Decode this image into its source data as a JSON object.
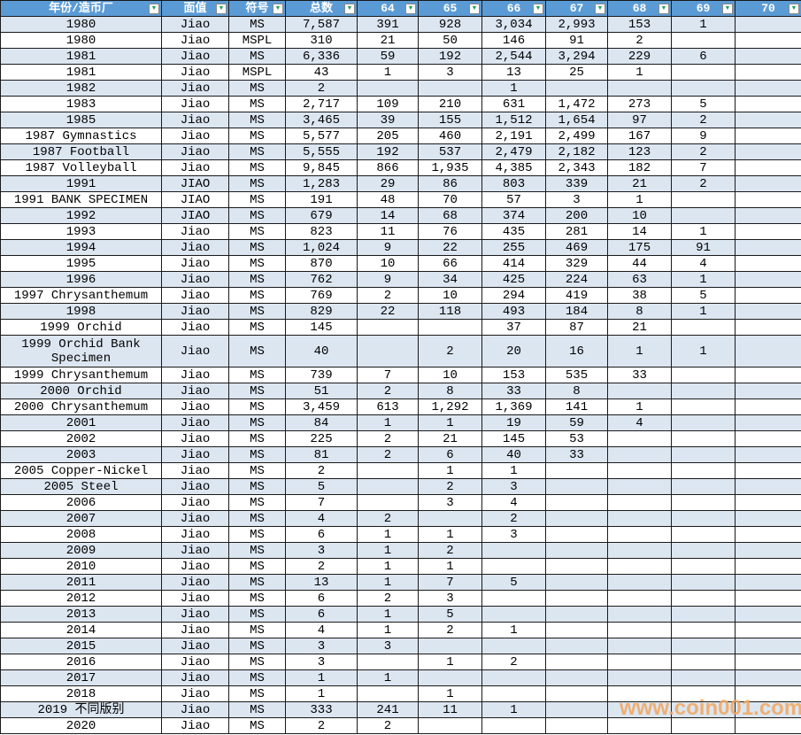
{
  "table": {
    "columns": [
      "年份/造币厂",
      "面值",
      "符号",
      "总数",
      "64",
      "65",
      "66",
      "67",
      "68",
      "69",
      "70"
    ],
    "filter_icon": "▼",
    "tall_row_index": 20,
    "rows": [
      [
        "1980",
        "Jiao",
        "MS",
        "7,587",
        "391",
        "928",
        "3,034",
        "2,993",
        "153",
        "1",
        ""
      ],
      [
        "1980",
        "Jiao",
        "MSPL",
        "310",
        "21",
        "50",
        "146",
        "91",
        "2",
        "",
        ""
      ],
      [
        "1981",
        "Jiao",
        "MS",
        "6,336",
        "59",
        "192",
        "2,544",
        "3,294",
        "229",
        "6",
        ""
      ],
      [
        "1981",
        "Jiao",
        "MSPL",
        "43",
        "1",
        "3",
        "13",
        "25",
        "1",
        "",
        ""
      ],
      [
        "1982",
        "Jiao",
        "MS",
        "2",
        "",
        "",
        "1",
        "",
        "",
        "",
        ""
      ],
      [
        "1983",
        "Jiao",
        "MS",
        "2,717",
        "109",
        "210",
        "631",
        "1,472",
        "273",
        "5",
        ""
      ],
      [
        "1985",
        "Jiao",
        "MS",
        "3,465",
        "39",
        "155",
        "1,512",
        "1,654",
        "97",
        "2",
        ""
      ],
      [
        "1987 Gymnastics",
        "Jiao",
        "MS",
        "5,577",
        "205",
        "460",
        "2,191",
        "2,499",
        "167",
        "9",
        ""
      ],
      [
        "1987 Football",
        "Jiao",
        "MS",
        "5,555",
        "192",
        "537",
        "2,479",
        "2,182",
        "123",
        "2",
        ""
      ],
      [
        "1987 Volleyball",
        "Jiao",
        "MS",
        "9,845",
        "866",
        "1,935",
        "4,385",
        "2,343",
        "182",
        "7",
        ""
      ],
      [
        "1991",
        "JIAO",
        "MS",
        "1,283",
        "29",
        "86",
        "803",
        "339",
        "21",
        "2",
        ""
      ],
      [
        "1991 BANK SPECIMEN",
        "JIAO",
        "MS",
        "191",
        "48",
        "70",
        "57",
        "3",
        "1",
        "",
        ""
      ],
      [
        "1992",
        "JIAO",
        "MS",
        "679",
        "14",
        "68",
        "374",
        "200",
        "10",
        "",
        ""
      ],
      [
        "1993",
        "Jiao",
        "MS",
        "823",
        "11",
        "76",
        "435",
        "281",
        "14",
        "1",
        ""
      ],
      [
        "1994",
        "Jiao",
        "MS",
        "1,024",
        "9",
        "22",
        "255",
        "469",
        "175",
        "91",
        ""
      ],
      [
        "1995",
        "Jiao",
        "MS",
        "870",
        "10",
        "66",
        "414",
        "329",
        "44",
        "4",
        ""
      ],
      [
        "1996",
        "Jiao",
        "MS",
        "762",
        "9",
        "34",
        "425",
        "224",
        "63",
        "1",
        ""
      ],
      [
        "1997 Chrysanthemum",
        "Jiao",
        "MS",
        "769",
        "2",
        "10",
        "294",
        "419",
        "38",
        "5",
        ""
      ],
      [
        "1998",
        "Jiao",
        "MS",
        "829",
        "22",
        "118",
        "493",
        "184",
        "8",
        "1",
        ""
      ],
      [
        "1999 Orchid",
        "Jiao",
        "MS",
        "145",
        "",
        "",
        "37",
        "87",
        "21",
        "",
        ""
      ],
      [
        "1999 Orchid Bank Specimen",
        "Jiao",
        "MS",
        "40",
        "",
        "2",
        "20",
        "16",
        "1",
        "1",
        ""
      ],
      [
        "1999 Chrysanthemum",
        "Jiao",
        "MS",
        "739",
        "7",
        "10",
        "153",
        "535",
        "33",
        "",
        ""
      ],
      [
        "2000 Orchid",
        "Jiao",
        "MS",
        "51",
        "2",
        "8",
        "33",
        "8",
        "",
        "",
        ""
      ],
      [
        "2000 Chrysanthemum",
        "Jiao",
        "MS",
        "3,459",
        "613",
        "1,292",
        "1,369",
        "141",
        "1",
        "",
        ""
      ],
      [
        "2001",
        "Jiao",
        "MS",
        "84",
        "1",
        "1",
        "19",
        "59",
        "4",
        "",
        ""
      ],
      [
        "2002",
        "Jiao",
        "MS",
        "225",
        "2",
        "21",
        "145",
        "53",
        "",
        "",
        ""
      ],
      [
        "2003",
        "Jiao",
        "MS",
        "81",
        "2",
        "6",
        "40",
        "33",
        "",
        "",
        ""
      ],
      [
        "2005 Copper-Nickel",
        "Jiao",
        "MS",
        "2",
        "",
        "1",
        "1",
        "",
        "",
        "",
        ""
      ],
      [
        "2005 Steel",
        "Jiao",
        "MS",
        "5",
        "",
        "2",
        "3",
        "",
        "",
        "",
        ""
      ],
      [
        "2006",
        "Jiao",
        "MS",
        "7",
        "",
        "3",
        "4",
        "",
        "",
        "",
        ""
      ],
      [
        "2007",
        "Jiao",
        "MS",
        "4",
        "2",
        "",
        "2",
        "",
        "",
        "",
        ""
      ],
      [
        "2008",
        "Jiao",
        "MS",
        "6",
        "1",
        "1",
        "3",
        "",
        "",
        "",
        ""
      ],
      [
        "2009",
        "Jiao",
        "MS",
        "3",
        "1",
        "2",
        "",
        "",
        "",
        "",
        ""
      ],
      [
        "2010",
        "Jiao",
        "MS",
        "2",
        "1",
        "1",
        "",
        "",
        "",
        "",
        ""
      ],
      [
        "2011",
        "Jiao",
        "MS",
        "13",
        "1",
        "7",
        "5",
        "",
        "",
        "",
        ""
      ],
      [
        "2012",
        "Jiao",
        "MS",
        "6",
        "2",
        "3",
        "",
        "",
        "",
        "",
        ""
      ],
      [
        "2013",
        "Jiao",
        "MS",
        "6",
        "1",
        "5",
        "",
        "",
        "",
        "",
        ""
      ],
      [
        "2014",
        "Jiao",
        "MS",
        "4",
        "1",
        "2",
        "1",
        "",
        "",
        "",
        ""
      ],
      [
        "2015",
        "Jiao",
        "MS",
        "3",
        "3",
        "",
        "",
        "",
        "",
        "",
        ""
      ],
      [
        "2016",
        "Jiao",
        "MS",
        "3",
        "",
        "1",
        "2",
        "",
        "",
        "",
        ""
      ],
      [
        "2017",
        "Jiao",
        "MS",
        "1",
        "1",
        "",
        "",
        "",
        "",
        "",
        ""
      ],
      [
        "2018",
        "Jiao",
        "MS",
        "1",
        "",
        "1",
        "",
        "",
        "",
        "",
        ""
      ],
      [
        "2019 不同版别",
        "Jiao",
        "MS",
        "333",
        "241",
        "11",
        "1",
        "",
        "",
        "",
        ""
      ],
      [
        "2020",
        "Jiao",
        "MS",
        "2",
        "2",
        "",
        "",
        "",
        "",
        "",
        ""
      ]
    ]
  },
  "watermark": "www.coin001.com",
  "colors": {
    "header_bg": "#5b9bd5",
    "alt_row": "#dce6f1",
    "grid_line": "#1a1a1a",
    "filter_arrow": "#1f9d55",
    "watermark": "#f2a65e"
  }
}
